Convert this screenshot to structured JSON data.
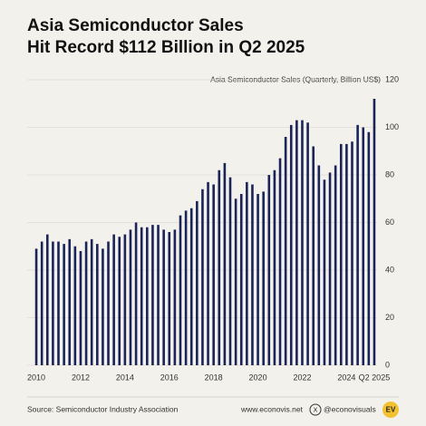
{
  "chart_data": {
    "type": "bar",
    "title": "Asia Semiconductor Sales",
    "subtitle": "Hit Record $112 Billion in Q2 2025",
    "y_axis_label": "Asia Semiconductor Sales (Quarterly, Billion US$)",
    "source": "Source: Semiconductor Industry Association",
    "website": "www.econovis.net",
    "handle": "@econovisuals",
    "logo": "EV",
    "color": "#1b2459",
    "categories": [
      "2010",
      null,
      null,
      null,
      null,
      null,
      null,
      null,
      "2012",
      null,
      null,
      null,
      null,
      null,
      null,
      null,
      "2014",
      null,
      null,
      null,
      null,
      null,
      null,
      null,
      "2016",
      null,
      null,
      null,
      null,
      null,
      null,
      null,
      "2018",
      null,
      null,
      null,
      null,
      null,
      null,
      null,
      "2020",
      null,
      null,
      null,
      null,
      null,
      null,
      null,
      "2022",
      null,
      null,
      null,
      null,
      null,
      null,
      null,
      "2024",
      null,
      null,
      null,
      null,
      "Q2 2025"
    ],
    "values": [
      49,
      52,
      55,
      52,
      52,
      51,
      53,
      50,
      48,
      52,
      53,
      51,
      49,
      52,
      55,
      54,
      55,
      57,
      60,
      58,
      58,
      59,
      59,
      57,
      56,
      57,
      63,
      65,
      66,
      69,
      74,
      77,
      76,
      82,
      85,
      79,
      70,
      72,
      77,
      76,
      72,
      73,
      80,
      82,
      87,
      96,
      101,
      103,
      103,
      102,
      92,
      84,
      78,
      81,
      84,
      93,
      93,
      94,
      101,
      100,
      98,
      112
    ],
    "ylim": [
      0,
      120
    ],
    "yticks": [
      0,
      20,
      40,
      60,
      80,
      100,
      120
    ],
    "grid": true
  }
}
